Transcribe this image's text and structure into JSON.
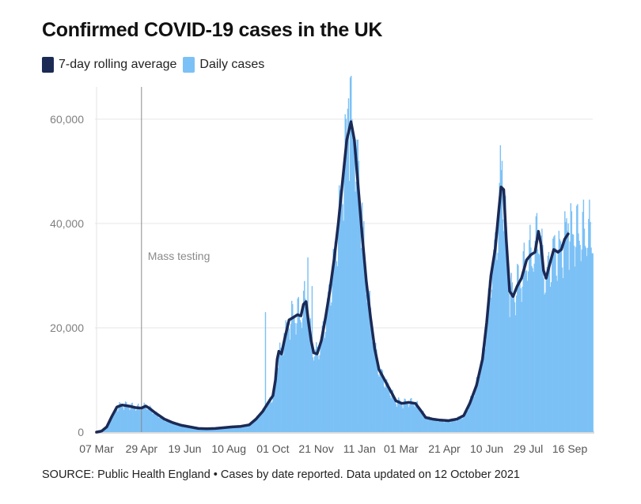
{
  "title": "Confirmed COVID-19 cases in the UK",
  "legend": {
    "line_label": "7-day rolling average",
    "bar_label": "Daily cases"
  },
  "source": "SOURCE: Public Health England • Cases by date reported. Data updated on 12 October 2021",
  "colors": {
    "line": "#1b2a55",
    "bars": "#7cc1f6",
    "grid": "#e6e6e6",
    "marker": "#8a8a8a"
  },
  "chart_data": {
    "type": "bar",
    "title": "Confirmed COVID-19 cases in the UK",
    "xlabel": "",
    "ylabel": "",
    "ylim": [
      0,
      68000
    ],
    "x_unit": "days since 07 Mar 2020",
    "x_range": [
      0,
      585
    ],
    "y_ticks": [
      0,
      20000,
      40000,
      60000
    ],
    "y_tick_labels": [
      "0",
      "20,000",
      "40,000",
      "60,000"
    ],
    "x_ticks": [
      {
        "day": 0,
        "label": "07 Mar"
      },
      {
        "day": 53,
        "label": "29 Apr"
      },
      {
        "day": 104,
        "label": "19 Jun"
      },
      {
        "day": 156,
        "label": "10 Aug"
      },
      {
        "day": 208,
        "label": "01 Oct"
      },
      {
        "day": 259,
        "label": "21 Nov"
      },
      {
        "day": 310,
        "label": "11 Jan"
      },
      {
        "day": 359,
        "label": "01 Mar"
      },
      {
        "day": 410,
        "label": "21 Apr"
      },
      {
        "day": 460,
        "label": "10 Jun"
      },
      {
        "day": 509,
        "label": "29 Jul"
      },
      {
        "day": 558,
        "label": "16 Sep"
      }
    ],
    "annotations": [
      {
        "day": 53,
        "label": "Mass testing"
      }
    ],
    "series": [
      {
        "name": "7-day rolling average",
        "kind": "line",
        "points": [
          [
            0,
            0
          ],
          [
            6,
            200
          ],
          [
            12,
            1000
          ],
          [
            18,
            3000
          ],
          [
            24,
            4800
          ],
          [
            30,
            5200
          ],
          [
            38,
            5000
          ],
          [
            46,
            4700
          ],
          [
            53,
            4600
          ],
          [
            58,
            5000
          ],
          [
            62,
            4600
          ],
          [
            70,
            3600
          ],
          [
            80,
            2500
          ],
          [
            90,
            1800
          ],
          [
            100,
            1300
          ],
          [
            110,
            1000
          ],
          [
            120,
            700
          ],
          [
            130,
            650
          ],
          [
            140,
            700
          ],
          [
            150,
            850
          ],
          [
            160,
            1000
          ],
          [
            170,
            1100
          ],
          [
            180,
            1400
          ],
          [
            188,
            2500
          ],
          [
            196,
            4000
          ],
          [
            203,
            5800
          ],
          [
            208,
            7000
          ],
          [
            211,
            10000
          ],
          [
            213,
            14000
          ],
          [
            215,
            15500
          ],
          [
            218,
            15000
          ],
          [
            222,
            18000
          ],
          [
            227,
            21500
          ],
          [
            232,
            22000
          ],
          [
            237,
            22500
          ],
          [
            241,
            22300
          ],
          [
            244,
            24500
          ],
          [
            247,
            25000
          ],
          [
            250,
            21000
          ],
          [
            253,
            17500
          ],
          [
            256,
            15200
          ],
          [
            260,
            15000
          ],
          [
            265,
            17500
          ],
          [
            270,
            22000
          ],
          [
            275,
            27000
          ],
          [
            280,
            33000
          ],
          [
            285,
            40000
          ],
          [
            290,
            48000
          ],
          [
            295,
            56000
          ],
          [
            300,
            59500
          ],
          [
            304,
            56000
          ],
          [
            308,
            48000
          ],
          [
            313,
            38000
          ],
          [
            318,
            29000
          ],
          [
            323,
            22000
          ],
          [
            328,
            16000
          ],
          [
            333,
            12000
          ],
          [
            338,
            10500
          ],
          [
            343,
            9000
          ],
          [
            348,
            7500
          ],
          [
            353,
            6000
          ],
          [
            360,
            5500
          ],
          [
            368,
            5700
          ],
          [
            376,
            5500
          ],
          [
            382,
            4200
          ],
          [
            388,
            2800
          ],
          [
            396,
            2500
          ],
          [
            405,
            2300
          ],
          [
            415,
            2200
          ],
          [
            425,
            2500
          ],
          [
            433,
            3200
          ],
          [
            440,
            5500
          ],
          [
            448,
            9000
          ],
          [
            455,
            14000
          ],
          [
            460,
            21000
          ],
          [
            465,
            30000
          ],
          [
            470,
            35000
          ],
          [
            474,
            42000
          ],
          [
            477,
            47000
          ],
          [
            480,
            46500
          ],
          [
            483,
            37000
          ],
          [
            487,
            27000
          ],
          [
            491,
            26000
          ],
          [
            496,
            28000
          ],
          [
            501,
            29500
          ],
          [
            507,
            33000
          ],
          [
            512,
            34000
          ],
          [
            517,
            34500
          ],
          [
            521,
            38500
          ],
          [
            524,
            36000
          ],
          [
            527,
            31000
          ],
          [
            530,
            29500
          ],
          [
            534,
            32000
          ],
          [
            539,
            35000
          ],
          [
            544,
            34500
          ],
          [
            548,
            35000
          ],
          [
            552,
            37000
          ],
          [
            556,
            38000
          ]
        ]
      },
      {
        "name": "Daily cases",
        "kind": "bar",
        "spikes": [
          [
            199,
            23000
          ],
          [
            221,
            19000
          ],
          [
            249,
            33500
          ],
          [
            254,
            28000
          ],
          [
            296,
            62000
          ],
          [
            297,
            64000
          ],
          [
            299,
            68000
          ],
          [
            301,
            60000
          ],
          [
            309,
            52000
          ],
          [
            313,
            44000
          ],
          [
            476,
            55000
          ],
          [
            478,
            52000
          ],
          [
            519,
            42000
          ],
          [
            554,
            41000
          ],
          [
            556,
            40000
          ]
        ]
      }
    ]
  }
}
